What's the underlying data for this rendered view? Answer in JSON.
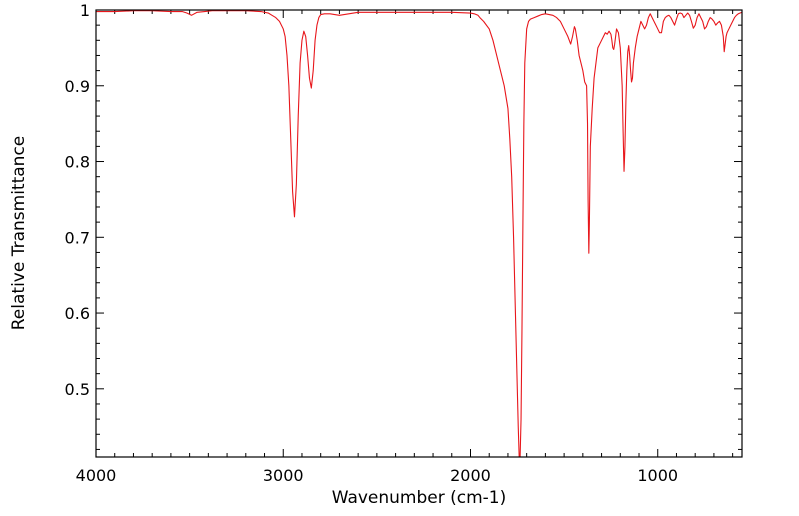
{
  "chart_data": {
    "type": "line",
    "title": "",
    "xlabel": "Wavenumber (cm-1)",
    "ylabel": "Relative Transmittance",
    "xlim": [
      4000,
      550
    ],
    "ylim": [
      0.41,
      1.0
    ],
    "x_reversed": true,
    "grid": false,
    "legend": "none",
    "line_color": "#e8161b",
    "x_ticks": [
      {
        "value": 4000,
        "label": "4000"
      },
      {
        "value": 3000,
        "label": "3000"
      },
      {
        "value": 2000,
        "label": "2000"
      },
      {
        "value": 1000,
        "label": "1000"
      }
    ],
    "y_ticks": [
      {
        "value": 0.5,
        "label": "0.5"
      },
      {
        "value": 0.6,
        "label": "0.6"
      },
      {
        "value": 0.7,
        "label": "0.7"
      },
      {
        "value": 0.8,
        "label": "0.8"
      },
      {
        "value": 0.9,
        "label": "0.9"
      },
      {
        "value": 1.0,
        "label": "1"
      }
    ],
    "series": [
      {
        "x": [
          4000,
          3900,
          3800,
          3700,
          3600,
          3540,
          3515,
          3490,
          3460,
          3420,
          3380,
          3300,
          3200,
          3120,
          3080,
          3060,
          3040,
          3020,
          3000,
          2990,
          2980,
          2970,
          2960,
          2950,
          2940,
          2930,
          2920,
          2910,
          2900,
          2890,
          2880,
          2870,
          2860,
          2850,
          2840,
          2830,
          2820,
          2810,
          2800,
          2780,
          2750,
          2700,
          2600,
          2500,
          2400,
          2300,
          2200,
          2100,
          2000,
          1980,
          1960,
          1950,
          1930,
          1900,
          1880,
          1860,
          1840,
          1820,
          1800,
          1790,
          1780,
          1770,
          1760,
          1750,
          1745,
          1740,
          1735,
          1730,
          1725,
          1720,
          1715,
          1710,
          1700,
          1690,
          1680,
          1660,
          1640,
          1620,
          1600,
          1580,
          1560,
          1540,
          1520,
          1500,
          1480,
          1465,
          1455,
          1445,
          1440,
          1430,
          1420,
          1410,
          1400,
          1390,
          1380,
          1375,
          1372,
          1368,
          1365,
          1360,
          1350,
          1340,
          1330,
          1320,
          1300,
          1290,
          1280,
          1270,
          1260,
          1250,
          1245,
          1240,
          1235,
          1230,
          1225,
          1220,
          1210,
          1200,
          1190,
          1185,
          1180,
          1175,
          1170,
          1165,
          1160,
          1155,
          1150,
          1145,
          1140,
          1135,
          1130,
          1120,
          1110,
          1100,
          1090,
          1080,
          1070,
          1060,
          1050,
          1040,
          1030,
          1020,
          1010,
          1000,
          990,
          980,
          970,
          960,
          950,
          940,
          930,
          920,
          910,
          900,
          890,
          880,
          870,
          860,
          850,
          840,
          830,
          820,
          810,
          800,
          790,
          780,
          770,
          760,
          750,
          740,
          730,
          720,
          710,
          700,
          690,
          680,
          670,
          660,
          650,
          645,
          640,
          635,
          630,
          620,
          610,
          600,
          590,
          580,
          570,
          560,
          550
        ],
        "y": [
          0.998,
          0.998,
          0.999,
          0.999,
          0.998,
          0.998,
          0.996,
          0.993,
          0.997,
          0.998,
          0.999,
          0.999,
          0.999,
          0.998,
          0.996,
          0.993,
          0.99,
          0.985,
          0.975,
          0.965,
          0.94,
          0.9,
          0.83,
          0.76,
          0.727,
          0.77,
          0.86,
          0.93,
          0.96,
          0.972,
          0.965,
          0.94,
          0.91,
          0.897,
          0.92,
          0.96,
          0.98,
          0.99,
          0.994,
          0.995,
          0.995,
          0.993,
          0.997,
          0.997,
          0.997,
          0.997,
          0.997,
          0.997,
          0.996,
          0.995,
          0.993,
          0.99,
          0.985,
          0.975,
          0.96,
          0.94,
          0.92,
          0.9,
          0.87,
          0.83,
          0.78,
          0.7,
          0.6,
          0.5,
          0.45,
          0.41,
          0.41,
          0.46,
          0.58,
          0.72,
          0.85,
          0.93,
          0.975,
          0.985,
          0.988,
          0.99,
          0.992,
          0.994,
          0.995,
          0.994,
          0.993,
          0.99,
          0.985,
          0.975,
          0.965,
          0.955,
          0.965,
          0.978,
          0.975,
          0.96,
          0.94,
          0.93,
          0.92,
          0.905,
          0.9,
          0.85,
          0.75,
          0.679,
          0.72,
          0.82,
          0.87,
          0.91,
          0.93,
          0.95,
          0.96,
          0.965,
          0.97,
          0.968,
          0.972,
          0.968,
          0.96,
          0.95,
          0.948,
          0.955,
          0.965,
          0.975,
          0.97,
          0.95,
          0.9,
          0.84,
          0.787,
          0.82,
          0.88,
          0.92,
          0.945,
          0.953,
          0.94,
          0.92,
          0.905,
          0.91,
          0.93,
          0.95,
          0.965,
          0.975,
          0.985,
          0.98,
          0.975,
          0.98,
          0.99,
          0.995,
          0.99,
          0.985,
          0.98,
          0.975,
          0.97,
          0.97,
          0.985,
          0.99,
          0.992,
          0.993,
          0.99,
          0.985,
          0.98,
          0.988,
          0.995,
          0.996,
          0.995,
          0.99,
          0.993,
          0.996,
          0.993,
          0.985,
          0.976,
          0.98,
          0.99,
          0.995,
          0.99,
          0.985,
          0.975,
          0.978,
          0.985,
          0.99,
          0.988,
          0.985,
          0.98,
          0.983,
          0.985,
          0.98,
          0.965,
          0.945,
          0.955,
          0.965,
          0.97,
          0.975,
          0.98,
          0.985,
          0.99,
          0.993,
          0.995,
          0.996,
          0.997
        ]
      }
    ]
  }
}
